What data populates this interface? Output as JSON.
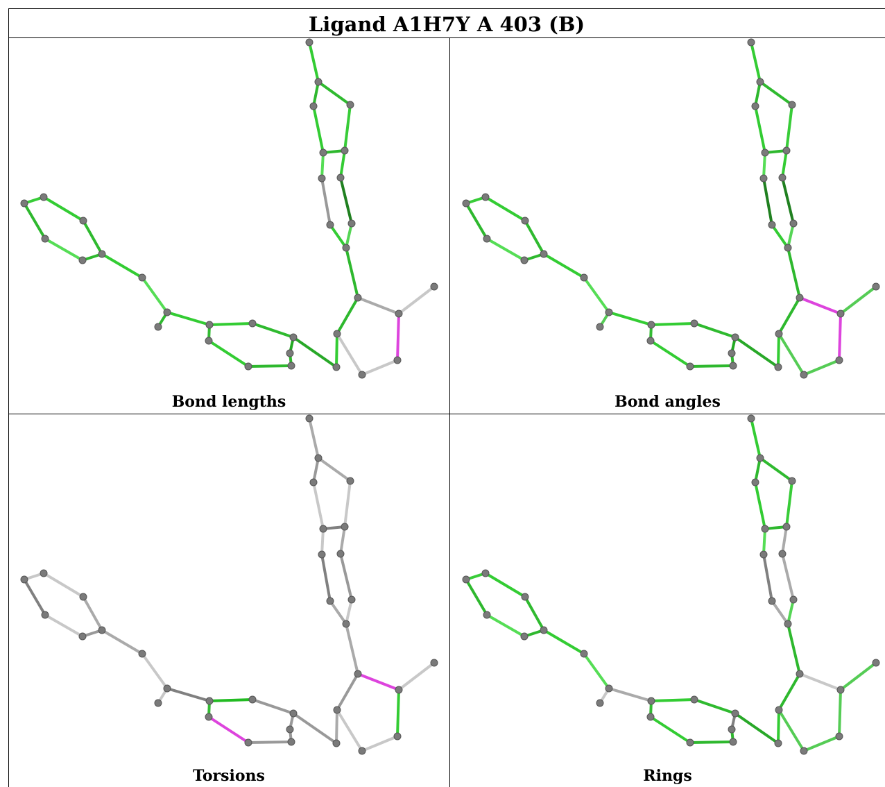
{
  "title": "Ligand A1H7Y A 403 (B)",
  "panels": [
    {
      "caption": "Bond lengths",
      "bond_colors": [
        "#33cc33",
        "#2eb82e",
        "#2fba2f",
        "#33cc33",
        "#38cc38",
        "#2eb82e",
        "#55dd55",
        "#33cc33",
        "#208020",
        "#999999",
        "#33cc33",
        "#55d555",
        "#2eb82e",
        "#2eb82e",
        "#33cc33",
        "#28a828",
        "#2fba2f",
        "#33cc33",
        "#33bb33",
        "#33cc33",
        "#2eb82e",
        "#2eb82e",
        "#22aa22",
        "#33cc33",
        "#aaaaaa",
        "#dd44dd",
        "#c8c8c8",
        "#c8c8c8",
        "#c8c8c8",
        "#2fba2f",
        "#55dd55"
      ]
    },
    {
      "caption": "Bond angles",
      "bond_colors": [
        "#33cc33",
        "#2eb82e",
        "#2fba2f",
        "#33cc33",
        "#38cc38",
        "#2eb82e",
        "#55dd55",
        "#33cc33",
        "#208020",
        "#208020",
        "#33cc33",
        "#55d555",
        "#2eb82e",
        "#2eb82e",
        "#33cc33",
        "#28a828",
        "#2fba2f",
        "#33cc33",
        "#33bb33",
        "#33cc33",
        "#2eb82e",
        "#2eb82e",
        "#22aa22",
        "#33cc33",
        "#dd44dd",
        "#dd44dd",
        "#55cc55",
        "#55cc55",
        "#55cc55",
        "#55cc55",
        "#55dd55"
      ]
    },
    {
      "caption": "Torsions",
      "bond_colors": [
        "#aaaaaa",
        "#999999",
        "#aaaaaa",
        "#c8c8c8",
        "#c8c8c8",
        "#808080",
        "#c8c8c8",
        "#aaaaaa",
        "#999999",
        "#808080",
        "#aaaaaa",
        "#c8c8c8",
        "#aaaaaa",
        "#999999",
        "#aaaaaa",
        "#999999",
        "#999999",
        "#22bb22",
        "#33bb33",
        "#dd44dd",
        "#999999",
        "#999999",
        "#999999",
        "#808080",
        "#dd44dd",
        "#33cc33",
        "#c8c8c8",
        "#c8c8c8",
        "#c8c8c8",
        "#c8c8c8",
        "#c8c8c8"
      ]
    },
    {
      "caption": "Rings",
      "bond_colors": [
        "#33cc33",
        "#2eb82e",
        "#2fba2f",
        "#33cc33",
        "#38cc38",
        "#2eb82e",
        "#55dd55",
        "#aaaaaa",
        "#aaaaaa",
        "#808080",
        "#aaaaaa",
        "#55d555",
        "#2eb82e",
        "#2eb82e",
        "#33cc33",
        "#28a828",
        "#2fba2f",
        "#33cc33",
        "#33bb33",
        "#33cc33",
        "#2eb82e",
        "#2eb82e",
        "#808080",
        "#aaaaaa",
        "#c8c8c8",
        "#55cc55",
        "#55cc55",
        "#55cc55",
        "#55cc55",
        "#c8c8c8",
        "#55dd55"
      ]
    }
  ],
  "colors": {
    "atom_fill": "#7a7a7a",
    "atom_stroke": "#555555",
    "outlier": "#dd44dd"
  }
}
